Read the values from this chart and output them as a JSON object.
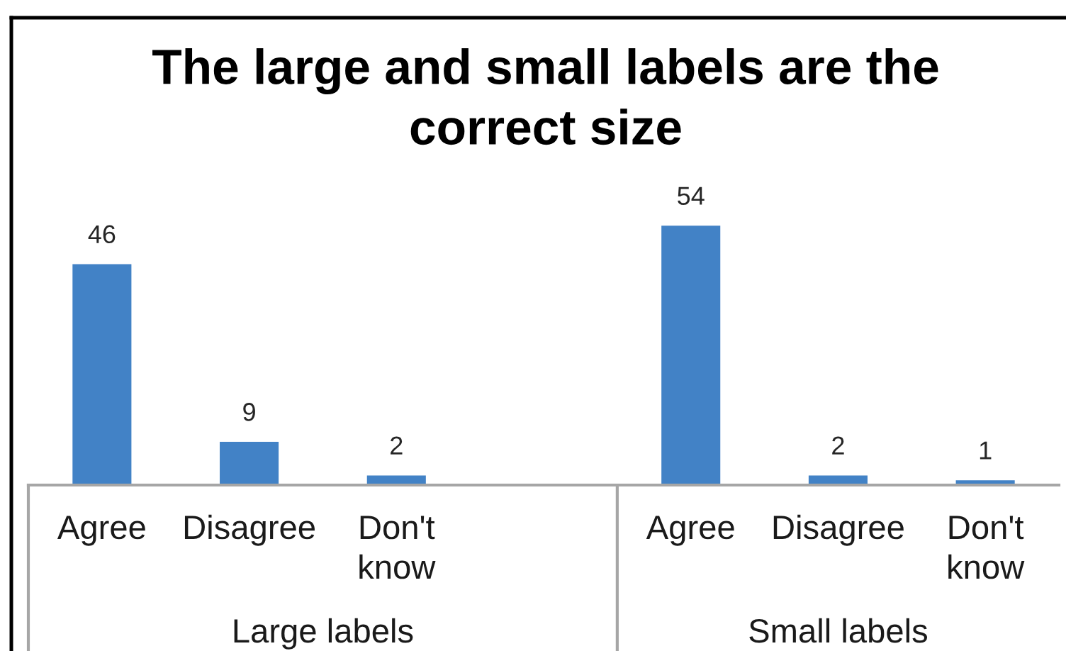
{
  "chart_data": {
    "type": "bar",
    "title": "The large and small labels are the\ncorrect size",
    "categories": [
      "Agree",
      "Disagree",
      "Don't\nknow",
      null,
      "Agree",
      "Disagree",
      "Don't\nknow"
    ],
    "values": [
      46,
      9,
      2,
      null,
      54,
      2,
      1
    ],
    "color": "#4282c6",
    "data_labels": true,
    "annotations": [
      "Large labels",
      "Small labels"
    ]
  }
}
